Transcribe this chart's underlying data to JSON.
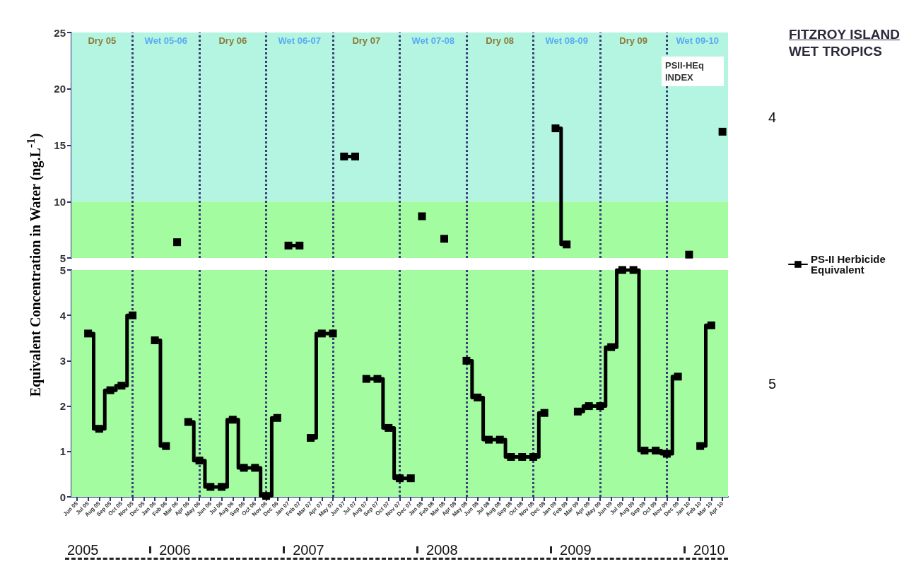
{
  "chart_data": [
    {
      "type": "step",
      "ylabel": "Equivalent Concentration in Water (ng.L$^{-1}$)",
      "annotations": [
        "PSII-HEq INDEX",
        "Dry 05",
        "Wet 05-06",
        "Dry 06",
        "Wet 06-07",
        "Dry 07",
        "Wet 07-08",
        "Dry 08",
        "Wet 08-09",
        "Dry 09",
        "Wet 09-10"
      ],
      "categories": [
        "Jun 05",
        "Jul 05",
        "Aug 05",
        "Sep 05",
        "Oct 05",
        "Nov 05",
        "Dec 05",
        "Jan 06",
        "Feb 06",
        "Mar 06",
        "Apr 06",
        "May 06",
        "Jun 06",
        "Jul 06",
        "Aug 06",
        "Sep 06",
        "Oct 06",
        "Nov 06",
        "Dec 06",
        "Jan 07",
        "Feb 07",
        "Mar 07",
        "Apr 07",
        "May 07",
        "Jun 07",
        "Jul 07",
        "Aug 07",
        "Sep 07",
        "Oct 07",
        "Nov 07",
        "Dec 07",
        "Jan 08",
        "Feb 08",
        "Mar 08",
        "Apr 08",
        "May 08",
        "Jun 08",
        "Jul 08",
        "Aug 08",
        "Sep 08",
        "Oct 08",
        "Nov 08",
        "Dec 08",
        "Jan 09",
        "Feb 09",
        "Mar 09",
        "Apr 09",
        "May 09",
        "Jun 09",
        "Jul 09",
        "Aug 09",
        "Sep 09",
        "Oct 09",
        "Nov 09",
        "Dec 09",
        "Jan 10",
        "Feb 10",
        "Mar 10",
        "Apr 10"
      ],
      "series": [
        {
          "name": "PS-II Herbicide Equivalent",
          "color": "#000000",
          "values": [
            null,
            null,
            null,
            null,
            null,
            null,
            null,
            null,
            null,
            6.4,
            null,
            null,
            null,
            null,
            null,
            null,
            null,
            null,
            null,
            6.1,
            6.1,
            null,
            null,
            null,
            14.0,
            14.0,
            null,
            null,
            null,
            null,
            null,
            8.7,
            null,
            6.7,
            null,
            null,
            null,
            null,
            null,
            null,
            null,
            null,
            null,
            16.5,
            6.2,
            null,
            null,
            null,
            null,
            null,
            null,
            null,
            null,
            null,
            null,
            5.3,
            null,
            null,
            16.2
          ]
        }
      ],
      "ylim": [
        5,
        25
      ],
      "yticks": [
        5,
        10,
        15,
        20,
        25
      ],
      "tick_labels": "y",
      "legend": "right",
      "marker": "square",
      "line_style": "solid",
      "bands": [
        {
          "axis": "y",
          "from": 10,
          "to": 25,
          "label": "4",
          "color": "#b3f5e0"
        },
        {
          "axis": "y",
          "from": 5,
          "to": 10,
          "color": "#a3fca0"
        }
      ],
      "ref_lines": [
        {
          "axis": "x",
          "value": "Nov 05",
          "color": "#3c3c78",
          "line_style": "dotted"
        },
        {
          "axis": "x",
          "value": "May 06",
          "color": "#3c3c78",
          "line_style": "dotted"
        },
        {
          "axis": "x",
          "value": "Nov 06",
          "color": "#3c3c78",
          "line_style": "dotted"
        },
        {
          "axis": "x",
          "value": "May 07",
          "color": "#3c3c78",
          "line_style": "dotted"
        },
        {
          "axis": "x",
          "value": "Nov 07",
          "color": "#3c3c78",
          "line_style": "dotted"
        },
        {
          "axis": "x",
          "value": "May 08",
          "color": "#3c3c78",
          "line_style": "dotted"
        },
        {
          "axis": "x",
          "value": "Nov 08",
          "color": "#3c3c78",
          "line_style": "dotted"
        },
        {
          "axis": "x",
          "value": "May 09",
          "color": "#3c3c78",
          "line_style": "dotted"
        },
        {
          "axis": "x",
          "value": "Nov 09",
          "color": "#3c3c78",
          "line_style": "dotted"
        }
      ]
    },
    {
      "type": "step",
      "annotations": [
        "2005",
        "2006",
        "2007",
        "2008",
        "2009",
        "2010"
      ],
      "categories": [
        "Jun 05",
        "Jul 05",
        "Aug 05",
        "Sep 05",
        "Oct 05",
        "Nov 05",
        "Dec 05",
        "Jan 06",
        "Feb 06",
        "Mar 06",
        "Apr 06",
        "May 06",
        "Jun 06",
        "Jul 06",
        "Aug 06",
        "Sep 06",
        "Oct 06",
        "Nov 06",
        "Dec 06",
        "Jan 07",
        "Feb 07",
        "Mar 07",
        "Apr 07",
        "May 07",
        "Jun 07",
        "Jul 07",
        "Aug 07",
        "Sep 07",
        "Oct 07",
        "Nov 07",
        "Dec 07",
        "Jan 08",
        "Feb 08",
        "Mar 08",
        "Apr 08",
        "May 08",
        "Jun 08",
        "Jul 08",
        "Aug 08",
        "Sep 08",
        "Oct 08",
        "Nov 08",
        "Dec 08",
        "Jan 09",
        "Feb 09",
        "Mar 09",
        "Apr 09",
        "May 09",
        "Jun 09",
        "Jul 09",
        "Aug 09",
        "Sep 09",
        "Oct 09",
        "Nov 09",
        "Dec 09",
        "Jan 10",
        "Feb 10",
        "Mar 10",
        "Apr 10"
      ],
      "series": [
        {
          "color": "#000000",
          "values": [
            null,
            3.6,
            1.5,
            2.35,
            2.45,
            4.0,
            null,
            3.45,
            1.12,
            null,
            1.65,
            0.8,
            0.22,
            0.22,
            1.7,
            0.64,
            0.64,
            0.02,
            1.74,
            null,
            null,
            1.3,
            3.6,
            3.6,
            null,
            null,
            2.6,
            2.6,
            1.52,
            0.41,
            0.41,
            null,
            null,
            null,
            null,
            3.0,
            2.19,
            1.26,
            1.26,
            0.88,
            0.88,
            0.88,
            1.85,
            null,
            null,
            1.88,
            2.0,
            2.0,
            3.3,
            5.0,
            5.0,
            1.02,
            1.02,
            0.95,
            2.65,
            null,
            1.12,
            3.78,
            null
          ]
        }
      ],
      "ylim": [
        0,
        5
      ],
      "yticks": [
        0,
        1,
        2,
        3,
        4,
        5
      ],
      "marker": "square",
      "line_style": "solid",
      "bands": [
        {
          "axis": "y",
          "from": 0,
          "to": 5,
          "label": "5",
          "color": "#a3fca0"
        }
      ],
      "ref_lines": [
        {
          "axis": "x",
          "value": "Nov 05",
          "color": "#3c3c78",
          "line_style": "dotted"
        },
        {
          "axis": "x",
          "value": "May 06",
          "color": "#3c3c78",
          "line_style": "dotted"
        },
        {
          "axis": "x",
          "value": "Nov 06",
          "color": "#3c3c78",
          "line_style": "dotted"
        },
        {
          "axis": "x",
          "value": "May 07",
          "color": "#3c3c78",
          "line_style": "dotted"
        },
        {
          "axis": "x",
          "value": "Nov 07",
          "color": "#3c3c78",
          "line_style": "dotted"
        },
        {
          "axis": "x",
          "value": "May 08",
          "color": "#3c3c78",
          "line_style": "dotted"
        },
        {
          "axis": "x",
          "value": "Nov 08",
          "color": "#3c3c78",
          "line_style": "dotted"
        },
        {
          "axis": "x",
          "value": "May 09",
          "color": "#3c3c78",
          "line_style": "dotted"
        },
        {
          "axis": "x",
          "value": "Nov 09",
          "color": "#3c3c78",
          "line_style": "dotted"
        }
      ]
    },
    {
      "type": "other",
      "title": "FITZROY ISLAND",
      "subtitle": "WET TROPICS"
    }
  ]
}
